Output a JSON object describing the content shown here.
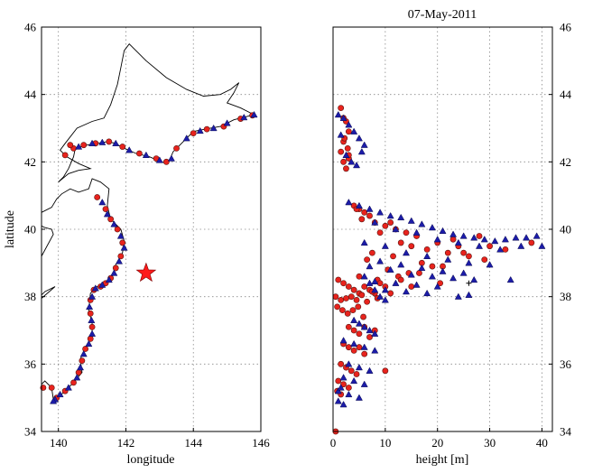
{
  "chart_data": [
    {
      "type": "scatter",
      "title": "",
      "xlabel": "longitude",
      "ylabel": "latitude",
      "xlim": [
        139.5,
        146
      ],
      "ylim": [
        34,
        46
      ],
      "xticks": [
        "140",
        "142",
        "144",
        "146"
      ],
      "yticks": [
        "34",
        "36",
        "38",
        "40",
        "42",
        "44",
        "46"
      ],
      "grid": true,
      "star": {
        "x": 142.6,
        "y": 38.7,
        "color": "#ff1a1a"
      },
      "coastline": [
        [
          [
            140.0,
            41.4
          ],
          [
            140.15,
            41.55
          ],
          [
            140.3,
            41.8
          ],
          [
            140.45,
            42.15
          ],
          [
            140.5,
            42.4
          ],
          [
            140.85,
            42.5
          ],
          [
            141.15,
            42.55
          ],
          [
            141.45,
            42.6
          ],
          [
            141.7,
            42.55
          ],
          [
            141.85,
            42.45
          ],
          [
            142.3,
            42.25
          ],
          [
            142.7,
            42.15
          ],
          [
            143.05,
            42.0
          ],
          [
            143.25,
            41.95
          ],
          [
            143.4,
            42.3
          ],
          [
            143.6,
            42.5
          ],
          [
            144.0,
            42.9
          ],
          [
            144.4,
            42.98
          ],
          [
            144.8,
            43.05
          ],
          [
            145.2,
            43.25
          ],
          [
            145.6,
            43.35
          ],
          [
            145.8,
            43.4
          ]
        ],
        [
          [
            140.0,
            41.4
          ],
          [
            140.3,
            41.65
          ],
          [
            140.6,
            41.75
          ],
          [
            140.95,
            41.8
          ],
          [
            140.6,
            41.95
          ],
          [
            140.25,
            42.15
          ],
          [
            140.05,
            42.35
          ],
          [
            140.2,
            42.55
          ],
          [
            140.55,
            43.0
          ],
          [
            141.0,
            43.2
          ],
          [
            141.35,
            43.3
          ],
          [
            141.55,
            43.7
          ],
          [
            141.75,
            44.3
          ],
          [
            141.85,
            44.8
          ],
          [
            141.95,
            45.3
          ],
          [
            142.1,
            45.5
          ],
          [
            142.6,
            45.0
          ],
          [
            143.2,
            44.5
          ],
          [
            143.8,
            44.15
          ],
          [
            144.3,
            43.95
          ],
          [
            144.8,
            44.0
          ],
          [
            145.1,
            44.15
          ],
          [
            145.35,
            44.35
          ],
          [
            145.2,
            44.05
          ],
          [
            145.0,
            43.75
          ],
          [
            145.4,
            43.6
          ],
          [
            145.8,
            43.4
          ]
        ],
        [
          [
            139.5,
            40.5
          ],
          [
            139.8,
            40.65
          ],
          [
            139.95,
            40.9
          ],
          [
            140.1,
            41.05
          ],
          [
            140.35,
            41.2
          ],
          [
            140.6,
            41.1
          ],
          [
            140.9,
            41.2
          ],
          [
            141.0,
            41.5
          ],
          [
            141.25,
            41.4
          ],
          [
            141.5,
            41.2
          ],
          [
            141.45,
            40.7
          ],
          [
            141.55,
            40.3
          ],
          [
            141.85,
            40.0
          ],
          [
            141.95,
            39.65
          ],
          [
            141.9,
            39.3
          ],
          [
            141.7,
            38.95
          ],
          [
            141.6,
            38.6
          ],
          [
            141.45,
            38.4
          ],
          [
            141.15,
            38.3
          ],
          [
            140.95,
            38.1
          ],
          [
            140.9,
            37.6
          ],
          [
            141.0,
            37.2
          ],
          [
            141.0,
            36.8
          ],
          [
            140.8,
            36.5
          ],
          [
            140.65,
            36.15
          ],
          [
            140.7,
            35.75
          ],
          [
            140.4,
            35.4
          ],
          [
            140.15,
            35.15
          ],
          [
            139.85,
            34.95
          ],
          [
            139.8,
            35.3
          ],
          [
            139.6,
            35.5
          ],
          [
            139.5,
            35.4
          ]
        ],
        [
          [
            139.5,
            39.2
          ],
          [
            139.85,
            39.85
          ],
          [
            139.8,
            40.0
          ],
          [
            139.6,
            40.05
          ],
          [
            139.5,
            40.1
          ]
        ],
        [
          [
            139.5,
            37.95
          ],
          [
            139.9,
            38.3
          ],
          [
            139.6,
            38.15
          ],
          [
            139.5,
            38.05
          ]
        ]
      ],
      "series": [
        {
          "marker": "circle",
          "color": "#e8231d",
          "x": [
            140.45,
            140.75,
            141.1,
            141.5,
            141.9,
            142.4,
            142.9,
            143.2,
            143.5,
            144.0,
            144.4,
            144.9,
            145.4,
            145.75,
            141.15,
            141.4,
            141.55,
            141.75,
            141.9,
            141.85,
            141.7,
            141.55,
            141.4,
            141.25,
            141.05,
            140.95,
            140.95,
            141.0,
            140.95,
            140.8,
            140.7,
            140.6,
            140.45,
            140.2,
            139.95,
            139.8,
            139.55,
            140.2,
            140.35
          ],
          "y": [
            42.4,
            42.5,
            42.55,
            42.6,
            42.45,
            42.25,
            42.1,
            42.0,
            42.4,
            42.85,
            42.97,
            43.05,
            43.28,
            43.38,
            40.95,
            40.6,
            40.3,
            40.0,
            39.6,
            39.2,
            38.85,
            38.55,
            38.4,
            38.3,
            38.2,
            37.9,
            37.5,
            37.1,
            36.75,
            36.45,
            36.1,
            35.75,
            35.45,
            35.2,
            35.0,
            35.3,
            35.3,
            42.2,
            42.5
          ]
        },
        {
          "marker": "triangle",
          "color": "#1c1ca8",
          "x": [
            140.6,
            141.0,
            141.3,
            141.7,
            142.1,
            142.6,
            143.0,
            143.35,
            143.8,
            144.2,
            144.6,
            145.0,
            145.5,
            145.8,
            141.3,
            141.45,
            141.65,
            141.85,
            141.95,
            141.8,
            141.65,
            141.5,
            141.3,
            141.1,
            141.0,
            140.92,
            140.98,
            141.0,
            140.9,
            140.75,
            140.65,
            140.55,
            140.3,
            140.05,
            139.9,
            139.85
          ],
          "y": [
            42.45,
            42.55,
            42.58,
            42.55,
            42.35,
            42.2,
            42.05,
            42.1,
            42.7,
            42.92,
            43.0,
            43.15,
            43.32,
            43.4,
            40.8,
            40.45,
            40.15,
            39.8,
            39.45,
            39.05,
            38.7,
            38.5,
            38.35,
            38.25,
            38.0,
            37.7,
            37.3,
            36.9,
            36.6,
            36.3,
            35.9,
            35.6,
            35.3,
            35.1,
            34.95,
            34.9
          ]
        }
      ]
    },
    {
      "type": "scatter",
      "title": "07-May-2011",
      "xlabel": "height [m]",
      "ylabel": "latitude",
      "xlim": [
        0,
        42
      ],
      "ylim": [
        34,
        46
      ],
      "xticks": [
        "0",
        "10",
        "20",
        "30",
        "40"
      ],
      "yticks": [
        "34",
        "36",
        "38",
        "40",
        "42",
        "44",
        "46"
      ],
      "grid": true,
      "series": [
        {
          "marker": "circle",
          "color": "#e8231d",
          "x": [
            1.5,
            2.5,
            3.0,
            2.0,
            1.5,
            2.0,
            2.5,
            3.0,
            2.2,
            2.8,
            2.0,
            3.0,
            4.0,
            5.0,
            6.0,
            7.0,
            5.5,
            4.5,
            8.0,
            10.0,
            12.0,
            14.0,
            16.0,
            11.0,
            9.0,
            13.0,
            15.0,
            18.0,
            20.0,
            22.0,
            24.0,
            26.0,
            17.0,
            21.0,
            23.0,
            28.0,
            30.0,
            6.5,
            10.5,
            14.5,
            19.0,
            25.0,
            29.0,
            33.0,
            38.0,
            5.0,
            8.5,
            12.5,
            16.5,
            20.5,
            7.5,
            11.5,
            1.0,
            2.0,
            3.0,
            4.0,
            5.0,
            6.0,
            7.0,
            8.0,
            9.0,
            10.0,
            0.5,
            1.5,
            2.5,
            3.5,
            4.5,
            5.5,
            6.5,
            7.5,
            8.5,
            11.0,
            13.0,
            15.0,
            0.8,
            1.8,
            2.8,
            3.8,
            4.8,
            5.8,
            3.0,
            4.0,
            5.0,
            6.0,
            7.0,
            8.0,
            2.0,
            3.0,
            4.0,
            5.0,
            6.0,
            1.5,
            2.5,
            3.5,
            4.5,
            10.0,
            1.0,
            2.0,
            3.0,
            0.8,
            1.5,
            0.5
          ],
          "y": [
            43.6,
            43.2,
            42.9,
            42.6,
            42.3,
            42.0,
            41.8,
            42.1,
            42.7,
            42.4,
            43.3,
            42.2,
            40.7,
            40.6,
            40.5,
            40.4,
            40.3,
            40.6,
            40.2,
            40.1,
            40.0,
            39.9,
            39.8,
            40.2,
            39.9,
            39.6,
            39.5,
            39.4,
            39.6,
            39.3,
            39.5,
            39.2,
            39.0,
            38.9,
            39.7,
            39.8,
            39.5,
            39.1,
            38.8,
            38.7,
            38.9,
            39.3,
            39.1,
            39.4,
            39.6,
            38.6,
            38.5,
            38.6,
            38.7,
            38.4,
            39.3,
            39.2,
            38.5,
            38.4,
            38.3,
            38.2,
            38.1,
            38.3,
            38.2,
            38.1,
            38.4,
            38.3,
            38.0,
            37.9,
            37.95,
            38.0,
            37.9,
            38.05,
            37.85,
            38.15,
            37.95,
            38.1,
            38.5,
            38.3,
            37.7,
            37.6,
            37.5,
            37.6,
            37.7,
            37.4,
            37.1,
            37.0,
            36.9,
            37.1,
            36.8,
            37.0,
            36.6,
            36.5,
            36.4,
            36.5,
            36.3,
            36.0,
            35.9,
            35.8,
            35.7,
            35.8,
            35.5,
            35.4,
            35.3,
            35.2,
            35.1,
            34.0
          ]
        },
        {
          "marker": "triangle",
          "color": "#1c1ca8",
          "x": [
            1.0,
            2.0,
            3.0,
            4.0,
            5.0,
            6.0,
            2.5,
            3.5,
            4.5,
            5.5,
            1.5,
            3.0,
            5.0,
            7.0,
            9.0,
            11.0,
            13.0,
            15.0,
            17.0,
            19.0,
            21.0,
            23.0,
            25.0,
            27.0,
            29.0,
            31.0,
            33.0,
            35.0,
            37.0,
            39.0,
            40.0,
            8.0,
            12.0,
            16.0,
            20.0,
            24.0,
            28.0,
            32.0,
            36.0,
            6.0,
            10.0,
            14.0,
            18.0,
            22.0,
            26.0,
            30.0,
            34.0,
            9.0,
            13.0,
            17.0,
            21.0,
            25.0,
            7.0,
            11.0,
            15.0,
            19.0,
            23.0,
            27.0,
            8.0,
            12.0,
            16.0,
            20.0,
            10.0,
            14.0,
            18.0,
            24.0,
            26.0,
            6.0,
            7.0,
            8.0,
            9.0,
            10.0,
            4.0,
            5.0,
            6.0,
            7.0,
            8.0,
            2.0,
            4.0,
            6.0,
            8.0,
            3.0,
            5.0,
            7.0,
            2.0,
            4.0,
            6.0,
            1.0,
            3.0,
            5.0,
            1.0,
            2.0,
            1.5
          ],
          "y": [
            43.4,
            43.3,
            43.1,
            42.9,
            42.7,
            42.5,
            42.2,
            42.0,
            41.9,
            42.3,
            42.8,
            40.8,
            40.7,
            40.6,
            40.5,
            40.4,
            40.35,
            40.25,
            40.15,
            40.05,
            39.95,
            39.85,
            39.8,
            39.75,
            39.7,
            39.65,
            39.7,
            39.75,
            39.75,
            39.8,
            39.5,
            40.2,
            40.0,
            39.9,
            39.7,
            39.6,
            39.5,
            39.4,
            39.5,
            39.6,
            39.5,
            39.3,
            39.2,
            39.1,
            39.0,
            38.95,
            38.5,
            39.05,
            38.95,
            38.85,
            38.75,
            38.7,
            38.9,
            38.8,
            38.65,
            38.6,
            38.55,
            38.5,
            38.45,
            38.4,
            38.35,
            38.3,
            38.2,
            38.15,
            38.1,
            38.0,
            38.05,
            38.6,
            38.4,
            38.2,
            38.0,
            37.9,
            37.3,
            37.2,
            37.1,
            37.0,
            36.9,
            36.7,
            36.6,
            36.5,
            36.4,
            36.0,
            35.9,
            35.8,
            35.6,
            35.5,
            35.4,
            35.2,
            35.1,
            35.0,
            34.9,
            34.8,
            35.3
          ]
        },
        {
          "marker": "cross",
          "color": "#000000",
          "x": [
            26.0
          ],
          "y": [
            38.4
          ]
        }
      ]
    }
  ]
}
